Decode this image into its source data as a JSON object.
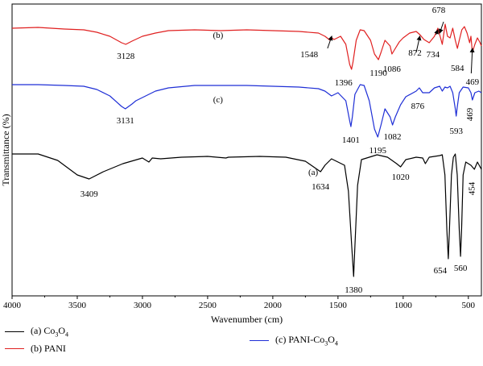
{
  "chart_data": {
    "type": "line",
    "xlabel": "Wavenumber (cm)",
    "ylabel": "Transmittance (%)",
    "xlim": [
      4000,
      400
    ],
    "x_ticks": [
      4000,
      3500,
      3000,
      2500,
      2000,
      1500,
      1000,
      500
    ],
    "y_ticks_shown": false,
    "grid": false,
    "legend_position": "bottom",
    "series": [
      {
        "name": "(a) Co3O4",
        "legend_parts": [
          "(a) Co",
          "3",
          "O",
          "4"
        ],
        "curve_label": "(a)",
        "color": "#000000",
        "points": [
          [
            4000,
            186
          ],
          [
            3800,
            186
          ],
          [
            3650,
            194
          ],
          [
            3500,
            212
          ],
          [
            3409,
            217
          ],
          [
            3300,
            208
          ],
          [
            3150,
            198
          ],
          [
            3000,
            191
          ],
          [
            2950,
            196
          ],
          [
            2925,
            191
          ],
          [
            2860,
            192
          ],
          [
            2700,
            190
          ],
          [
            2500,
            189
          ],
          [
            2360,
            191
          ],
          [
            2340,
            190
          ],
          [
            2100,
            189
          ],
          [
            1900,
            190
          ],
          [
            1750,
            195
          ],
          [
            1634,
            208
          ],
          [
            1600,
            200
          ],
          [
            1550,
            192
          ],
          [
            1450,
            200
          ],
          [
            1420,
            232
          ],
          [
            1395,
            300
          ],
          [
            1380,
            338
          ],
          [
            1370,
            300
          ],
          [
            1350,
            225
          ],
          [
            1320,
            193
          ],
          [
            1200,
            187
          ],
          [
            1120,
            190
          ],
          [
            1050,
            198
          ],
          [
            1020,
            202
          ],
          [
            980,
            193
          ],
          [
            900,
            190
          ],
          [
            850,
            191
          ],
          [
            830,
            198
          ],
          [
            800,
            190
          ],
          [
            720,
            188
          ],
          [
            700,
            187
          ],
          [
            680,
            212
          ],
          [
            665,
            280
          ],
          [
            654,
            316
          ],
          [
            645,
            280
          ],
          [
            630,
            212
          ],
          [
            615,
            190
          ],
          [
            600,
            186
          ],
          [
            585,
            212
          ],
          [
            570,
            280
          ],
          [
            560,
            313
          ],
          [
            552,
            280
          ],
          [
            540,
            212
          ],
          [
            520,
            196
          ],
          [
            480,
            200
          ],
          [
            454,
            205
          ],
          [
            430,
            196
          ],
          [
            400,
            205
          ]
        ],
        "annotations": [
          [
            3409,
            "3409"
          ],
          [
            1634,
            "1634"
          ],
          [
            1380,
            "1380"
          ],
          [
            1020,
            "1020"
          ],
          [
            654,
            "654"
          ],
          [
            560,
            "560"
          ],
          [
            454,
            "454"
          ]
        ]
      },
      {
        "name": "(b) PANI",
        "legend_parts": [
          "(b) PANI"
        ],
        "curve_label": "(b)",
        "color": "#e02020",
        "points": [
          [
            4000,
            30
          ],
          [
            3800,
            29
          ],
          [
            3600,
            31
          ],
          [
            3450,
            32
          ],
          [
            3350,
            35
          ],
          [
            3250,
            40
          ],
          [
            3160,
            48
          ],
          [
            3128,
            50
          ],
          [
            3080,
            46
          ],
          [
            3000,
            40
          ],
          [
            2900,
            36
          ],
          [
            2800,
            33
          ],
          [
            2600,
            32
          ],
          [
            2400,
            33
          ],
          [
            2200,
            32
          ],
          [
            2000,
            33
          ],
          [
            1800,
            34
          ],
          [
            1650,
            36
          ],
          [
            1600,
            40
          ],
          [
            1560,
            45
          ],
          [
            1548,
            42
          ],
          [
            1530,
            44
          ],
          [
            1480,
            40
          ],
          [
            1440,
            50
          ],
          [
            1410,
            75
          ],
          [
            1396,
            81
          ],
          [
            1385,
            72
          ],
          [
            1360,
            45
          ],
          [
            1330,
            32
          ],
          [
            1300,
            33
          ],
          [
            1250,
            45
          ],
          [
            1220,
            62
          ],
          [
            1190,
            69
          ],
          [
            1170,
            60
          ],
          [
            1140,
            45
          ],
          [
            1100,
            52
          ],
          [
            1086,
            62
          ],
          [
            1060,
            55
          ],
          [
            1030,
            47
          ],
          [
            1000,
            42
          ],
          [
            950,
            36
          ],
          [
            900,
            34
          ],
          [
            872,
            38
          ],
          [
            840,
            44
          ],
          [
            800,
            48
          ],
          [
            760,
            40
          ],
          [
            734,
            30
          ],
          [
            720,
            38
          ],
          [
            700,
            50
          ],
          [
            678,
            25
          ],
          [
            660,
            40
          ],
          [
            640,
            42
          ],
          [
            620,
            30
          ],
          [
            600,
            45
          ],
          [
            584,
            55
          ],
          [
            570,
            45
          ],
          [
            550,
            32
          ],
          [
            530,
            28
          ],
          [
            510,
            36
          ],
          [
            490,
            48
          ],
          [
            480,
            40
          ],
          [
            469,
            60
          ],
          [
            450,
            50
          ],
          [
            430,
            42
          ],
          [
            410,
            48
          ],
          [
            400,
            52
          ]
        ],
        "annotations": [
          [
            3128,
            "3128"
          ],
          [
            1548,
            "1548"
          ],
          [
            1396,
            "1396"
          ],
          [
            1190,
            "1190"
          ],
          [
            1086,
            "1086"
          ],
          [
            872,
            "872"
          ],
          [
            734,
            "734"
          ],
          [
            678,
            "678"
          ],
          [
            584,
            "584"
          ],
          [
            469,
            "469"
          ]
        ]
      },
      {
        "name": "(c) PANI-Co3O4",
        "legend_parts": [
          "(c) PANI-Co",
          "3",
          "O",
          "4"
        ],
        "curve_label": "(c)",
        "color": "#1f2fd6",
        "points": [
          [
            4000,
            100
          ],
          [
            3800,
            100
          ],
          [
            3600,
            101
          ],
          [
            3450,
            102
          ],
          [
            3350,
            106
          ],
          [
            3250,
            114
          ],
          [
            3160,
            127
          ],
          [
            3131,
            130
          ],
          [
            3080,
            124
          ],
          [
            3050,
            120
          ],
          [
            3000,
            116
          ],
          [
            2900,
            108
          ],
          [
            2800,
            104
          ],
          [
            2600,
            101
          ],
          [
            2400,
            101
          ],
          [
            2200,
            101
          ],
          [
            2000,
            102
          ],
          [
            1800,
            103
          ],
          [
            1650,
            105
          ],
          [
            1600,
            108
          ],
          [
            1550,
            114
          ],
          [
            1500,
            110
          ],
          [
            1440,
            120
          ],
          [
            1410,
            145
          ],
          [
            1401,
            152
          ],
          [
            1390,
            140
          ],
          [
            1370,
            112
          ],
          [
            1330,
            100
          ],
          [
            1300,
            101
          ],
          [
            1260,
            120
          ],
          [
            1220,
            155
          ],
          [
            1195,
            165
          ],
          [
            1170,
            150
          ],
          [
            1140,
            130
          ],
          [
            1100,
            140
          ],
          [
            1082,
            150
          ],
          [
            1060,
            140
          ],
          [
            1020,
            125
          ],
          [
            980,
            115
          ],
          [
            900,
            108
          ],
          [
            876,
            104
          ],
          [
            850,
            110
          ],
          [
            800,
            110
          ],
          [
            760,
            104
          ],
          [
            720,
            102
          ],
          [
            700,
            108
          ],
          [
            680,
            103
          ],
          [
            660,
            104
          ],
          [
            640,
            102
          ],
          [
            620,
            110
          ],
          [
            600,
            130
          ],
          [
            593,
            139
          ],
          [
            585,
            128
          ],
          [
            570,
            110
          ],
          [
            540,
            103
          ],
          [
            500,
            104
          ],
          [
            480,
            110
          ],
          [
            469,
            119
          ],
          [
            450,
            110
          ],
          [
            420,
            108
          ],
          [
            400,
            110
          ]
        ],
        "annotations": [
          [
            3131,
            "3131"
          ],
          [
            1401,
            "1401"
          ],
          [
            1195,
            "1195"
          ],
          [
            1082,
            "1082"
          ],
          [
            876,
            "876"
          ],
          [
            593,
            "593"
          ],
          [
            469,
            "469"
          ]
        ]
      }
    ]
  }
}
